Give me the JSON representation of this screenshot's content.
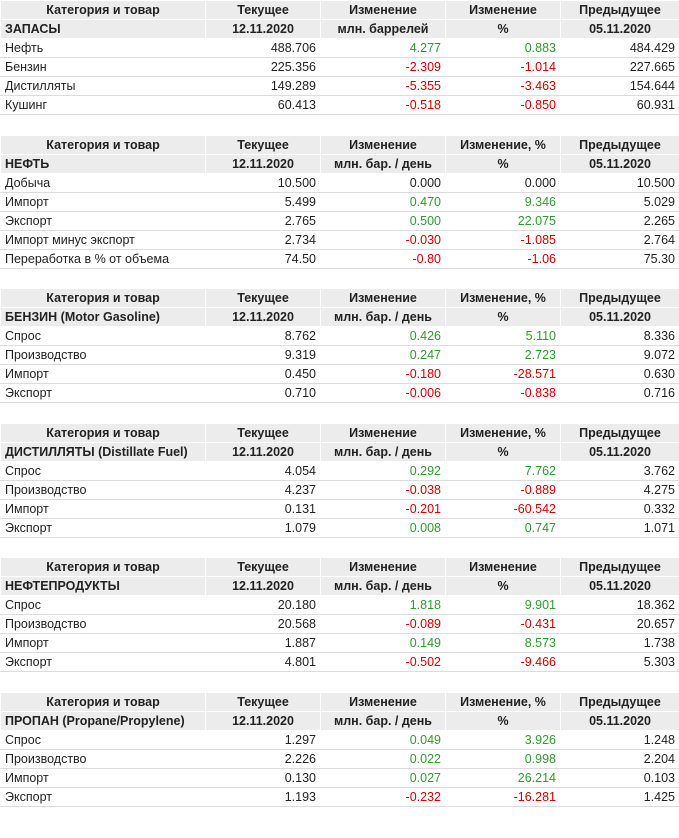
{
  "tables": [
    {
      "header": [
        "Категория и товар",
        "Текущее",
        "Изменение",
        "Изменение",
        "Предыдущее"
      ],
      "subheader": [
        "ЗАПАСЫ",
        "12.11.2020",
        "млн. баррелей",
        "%",
        "05.11.2020"
      ],
      "rows": [
        [
          "Нефть",
          "488.706",
          "4.277",
          "0.883",
          "484.429"
        ],
        [
          "Бензин",
          "225.356",
          "-2.309",
          "-1.014",
          "227.665"
        ],
        [
          "Дистилляты",
          "149.289",
          "-5.355",
          "-3.463",
          "154.644"
        ],
        [
          "Кушинг",
          "60.413",
          "-0.518",
          "-0.850",
          "60.931"
        ]
      ]
    },
    {
      "header": [
        "Категория и товар",
        "Текущее",
        "Изменение",
        "Изменение, %",
        "Предыдущее"
      ],
      "subheader": [
        "НЕФТЬ",
        "12.11.2020",
        "млн. бар. / день",
        "%",
        "05.11.2020"
      ],
      "rows": [
        [
          "Добыча",
          "10.500",
          "0.000",
          "0.000",
          "10.500"
        ],
        [
          "Импорт",
          "5.499",
          "0.470",
          "9.346",
          "5.029"
        ],
        [
          "Экспорт",
          "2.765",
          "0.500",
          "22.075",
          "2.265"
        ],
        [
          "Импорт минус экспорт",
          "2.734",
          "-0.030",
          "-1.085",
          "2.764"
        ],
        [
          "Переработка в % от объема",
          "74.50",
          "-0.80",
          "-1.06",
          "75.30"
        ]
      ]
    },
    {
      "header": [
        "Категория и товар",
        "Текущее",
        "Изменение",
        "Изменение, %",
        "Предыдущее"
      ],
      "subheader": [
        "БЕНЗИН (Motor Gasoline)",
        "12.11.2020",
        "млн. бар. / день",
        "%",
        "05.11.2020"
      ],
      "rows": [
        [
          "Спрос",
          "8.762",
          "0.426",
          "5.110",
          "8.336"
        ],
        [
          "Производство",
          "9.319",
          "0.247",
          "2.723",
          "9.072"
        ],
        [
          "Импорт",
          "0.450",
          "-0.180",
          "-28.571",
          "0.630"
        ],
        [
          "Экспорт",
          "0.710",
          "-0.006",
          "-0.838",
          "0.716"
        ]
      ]
    },
    {
      "header": [
        "Категория и товар",
        "Текущее",
        "Изменение",
        "Изменение, %",
        "Предыдущее"
      ],
      "subheader": [
        "ДИСТИЛЛЯТЫ (Distillate Fuel)",
        "12.11.2020",
        "млн. бар. / день",
        "%",
        "05.11.2020"
      ],
      "rows": [
        [
          "Спрос",
          "4.054",
          "0.292",
          "7.762",
          "3.762"
        ],
        [
          "Производство",
          "4.237",
          "-0.038",
          "-0.889",
          "4.275"
        ],
        [
          "Импорт",
          "0.131",
          "-0.201",
          "-60.542",
          "0.332"
        ],
        [
          "Экспорт",
          "1.079",
          "0.008",
          "0.747",
          "1.071"
        ]
      ]
    },
    {
      "header": [
        "Категория и товар",
        "Текущее",
        "Изменение",
        "Изменение",
        "Предыдущее"
      ],
      "subheader": [
        "НЕФТЕПРОДУКТЫ",
        "12.11.2020",
        "млн. бар. / день",
        "%",
        "05.11.2020"
      ],
      "rows": [
        [
          "Спрос",
          "20.180",
          "1.818",
          "9.901",
          "18.362"
        ],
        [
          "Производство",
          "20.568",
          "-0.089",
          "-0.431",
          "20.657"
        ],
        [
          "Импорт",
          "1.887",
          "0.149",
          "8.573",
          "1.738"
        ],
        [
          "Экспорт",
          "4.801",
          "-0.502",
          "-9.466",
          "5.303"
        ]
      ]
    },
    {
      "header": [
        "Категория и товар",
        "Текущее",
        "Изменение",
        "Изменение, %",
        "Предыдущее"
      ],
      "subheader": [
        "ПРОПАН (Propane/Propylene)",
        "12.11.2020",
        "млн. бар. / день",
        "%",
        "05.11.2020"
      ],
      "rows": [
        [
          "Спрос",
          "1.297",
          "0.049",
          "3.926",
          "1.248"
        ],
        [
          "Производство",
          "2.226",
          "0.022",
          "0.998",
          "2.204"
        ],
        [
          "Импорт",
          "0.130",
          "0.027",
          "26.214",
          "0.103"
        ],
        [
          "Экспорт",
          "1.193",
          "-0.232",
          "-16.281",
          "1.425"
        ]
      ]
    }
  ]
}
